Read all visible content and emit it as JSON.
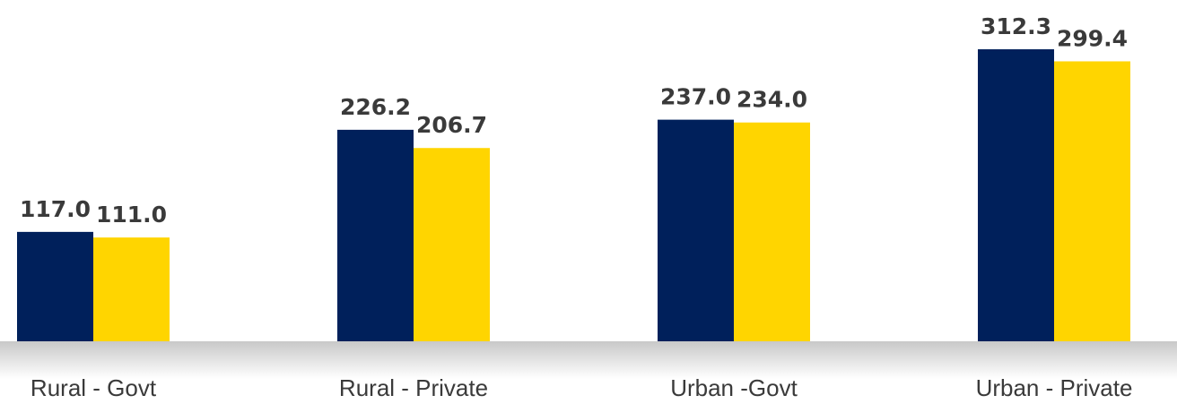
{
  "chart_data": {
    "type": "bar",
    "categories": [
      "Rural - Govt",
      "Rural - Private",
      "Urban -Govt",
      "Urban - Private"
    ],
    "series": [
      {
        "color": "#00205b",
        "values": [
          117.0,
          226.2,
          237.0,
          312.3
        ],
        "value_labels": [
          "117.0",
          "226.2",
          "237.0",
          "312.3"
        ]
      },
      {
        "color": "#ffd500",
        "values": [
          111.0,
          206.7,
          234.0,
          299.4
        ],
        "value_labels": [
          "111.0",
          "206.7",
          "234.0",
          "299.4"
        ]
      }
    ],
    "ylim": [
      0,
      365
    ]
  }
}
